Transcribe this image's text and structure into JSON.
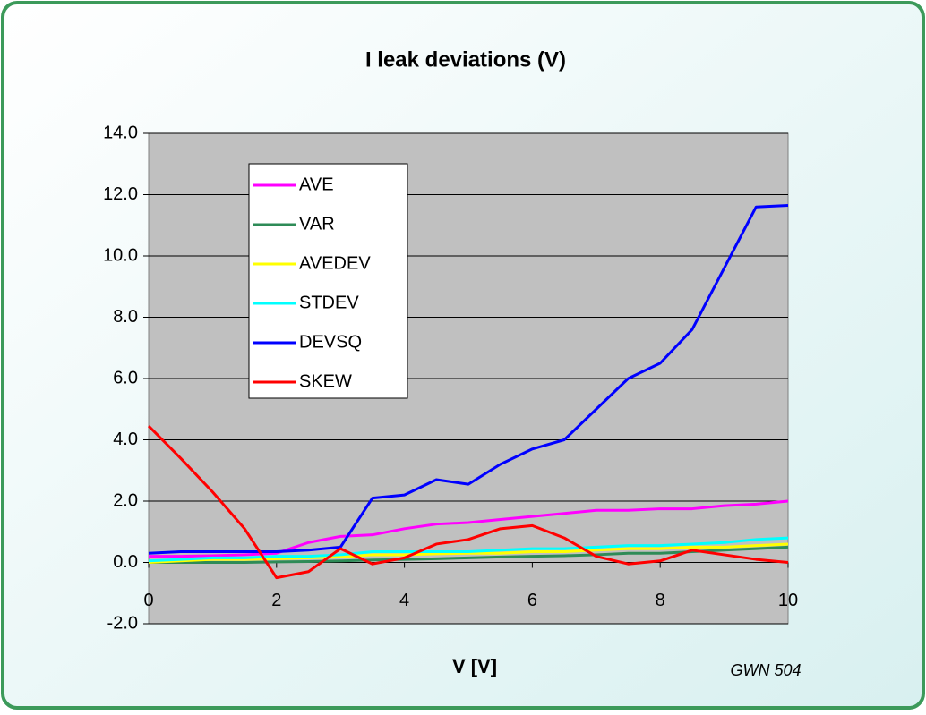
{
  "chart_data": {
    "type": "line",
    "title": "I leak deviations (V)",
    "x_label": "V [V]",
    "annotation": "GWN 504",
    "x": [
      0,
      0.5,
      1,
      1.5,
      2,
      2.5,
      3,
      3.5,
      4,
      4.5,
      5,
      5.5,
      6,
      6.5,
      7,
      7.5,
      8,
      8.5,
      9,
      9.5,
      10
    ],
    "series": [
      {
        "name": "AVE",
        "color": "#ff00ff",
        "values": [
          0.2,
          0.2,
          0.22,
          0.25,
          0.3,
          0.65,
          0.85,
          0.9,
          1.1,
          1.25,
          1.3,
          1.4,
          1.5,
          1.6,
          1.7,
          1.7,
          1.75,
          1.75,
          1.85,
          1.9,
          2.0
        ]
      },
      {
        "name": "VAR",
        "color": "#2e8b57",
        "values": [
          0,
          0,
          0,
          0,
          0.02,
          0.03,
          0.05,
          0.08,
          0.1,
          0.12,
          0.15,
          0.18,
          0.2,
          0.22,
          0.25,
          0.3,
          0.3,
          0.35,
          0.4,
          0.45,
          0.5
        ]
      },
      {
        "name": "AVEDEV",
        "color": "#ffff00",
        "values": [
          0,
          0.05,
          0.1,
          0.1,
          0.12,
          0.15,
          0.18,
          0.25,
          0.25,
          0.28,
          0.3,
          0.3,
          0.35,
          0.35,
          0.4,
          0.45,
          0.45,
          0.5,
          0.5,
          0.55,
          0.6
        ]
      },
      {
        "name": "STDEV",
        "color": "#00ffff",
        "values": [
          0.05,
          0.1,
          0.15,
          0.15,
          0.2,
          0.2,
          0.25,
          0.35,
          0.35,
          0.35,
          0.35,
          0.4,
          0.45,
          0.45,
          0.5,
          0.55,
          0.55,
          0.6,
          0.65,
          0.75,
          0.8
        ]
      },
      {
        "name": "DEVSQ",
        "color": "#0000ff",
        "values": [
          0.3,
          0.35,
          0.35,
          0.35,
          0.35,
          0.4,
          0.5,
          2.1,
          2.2,
          2.7,
          2.55,
          3.2,
          3.7,
          4.0,
          5.0,
          6.0,
          6.5,
          7.6,
          9.6,
          11.6,
          11.65
        ]
      },
      {
        "name": "SKEW",
        "color": "#ff0000",
        "values": [
          4.45,
          3.4,
          2.3,
          1.1,
          -0.5,
          -0.3,
          0.45,
          -0.05,
          0.15,
          0.6,
          0.75,
          1.1,
          1.2,
          0.8,
          0.2,
          -0.05,
          0.05,
          0.4,
          0.25,
          0.1,
          0.0
        ]
      }
    ],
    "xlim": [
      0,
      10
    ],
    "xticks": [
      0,
      2,
      4,
      6,
      8,
      10
    ],
    "ylim": [
      -2,
      14
    ],
    "yticks": [
      {
        "value": -2,
        "label": "-2.0"
      },
      {
        "value": 0,
        "label": "0.0"
      },
      {
        "value": 2,
        "label": "2.0"
      },
      {
        "value": 4,
        "label": "4.0"
      },
      {
        "value": 6,
        "label": "6.0"
      },
      {
        "value": 8,
        "label": "8.0"
      },
      {
        "value": 10,
        "label": "10.0"
      },
      {
        "value": 12,
        "label": "12.0"
      },
      {
        "value": 14,
        "label": "14.0"
      }
    ],
    "grid": true,
    "plot_background": "#c0c0c0"
  }
}
